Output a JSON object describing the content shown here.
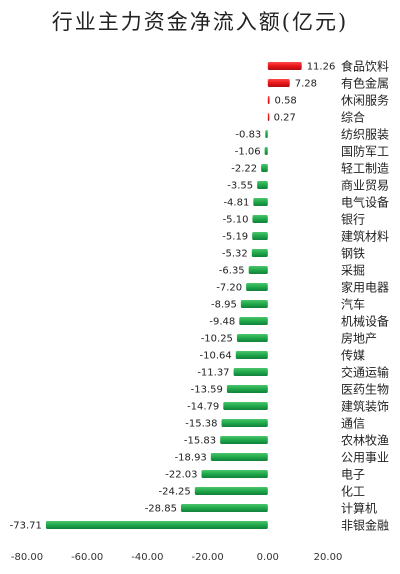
{
  "chart_data": {
    "type": "bar",
    "orientation": "horizontal",
    "title": "行业主力资金净流入额(亿元)",
    "xlabel": "",
    "ylabel": "",
    "xlim": [
      -80,
      20
    ],
    "x_ticks": [
      "-80.00",
      "-60.00",
      "-40.00",
      "-20.00",
      "0.00",
      "20.00"
    ],
    "grid": false,
    "legend": "none",
    "colors": {
      "positive": "#e8161a",
      "negative": "#1fa84a"
    },
    "categories": [
      "食品饮料",
      "有色金属",
      "休闲服务",
      "综合",
      "纺织服装",
      "国防军工",
      "轻工制造",
      "商业贸易",
      "电气设备",
      "银行",
      "建筑材料",
      "钢铁",
      "采掘",
      "家用电器",
      "汽车",
      "机械设备",
      "房地产",
      "传媒",
      "交通运输",
      "医药生物",
      "建筑装饰",
      "通信",
      "农林牧渔",
      "公用事业",
      "电子",
      "化工",
      "计算机",
      "非银金融"
    ],
    "values": [
      11.26,
      7.28,
      0.58,
      0.27,
      -0.83,
      -1.06,
      -2.22,
      -3.55,
      -4.81,
      -5.1,
      -5.19,
      -5.32,
      -6.35,
      -7.2,
      -8.95,
      -9.48,
      -10.25,
      -10.64,
      -11.37,
      -13.59,
      -14.79,
      -15.38,
      -15.83,
      -18.93,
      -22.03,
      -24.25,
      -28.85,
      -73.71
    ],
    "value_labels": [
      "11.26",
      "7.28",
      "0.58",
      "0.27",
      "-0.83",
      "-1.06",
      "-2.22",
      "-3.55",
      "-4.81",
      "-5.10",
      "-5.19",
      "-5.32",
      "-6.35",
      "-7.20",
      "-8.95",
      "-9.48",
      "-10.25",
      "-10.64",
      "-11.37",
      "-13.59",
      "-14.79",
      "-15.38",
      "-15.83",
      "-18.93",
      "-22.03",
      "-24.25",
      "-28.85",
      "-73.71"
    ]
  }
}
